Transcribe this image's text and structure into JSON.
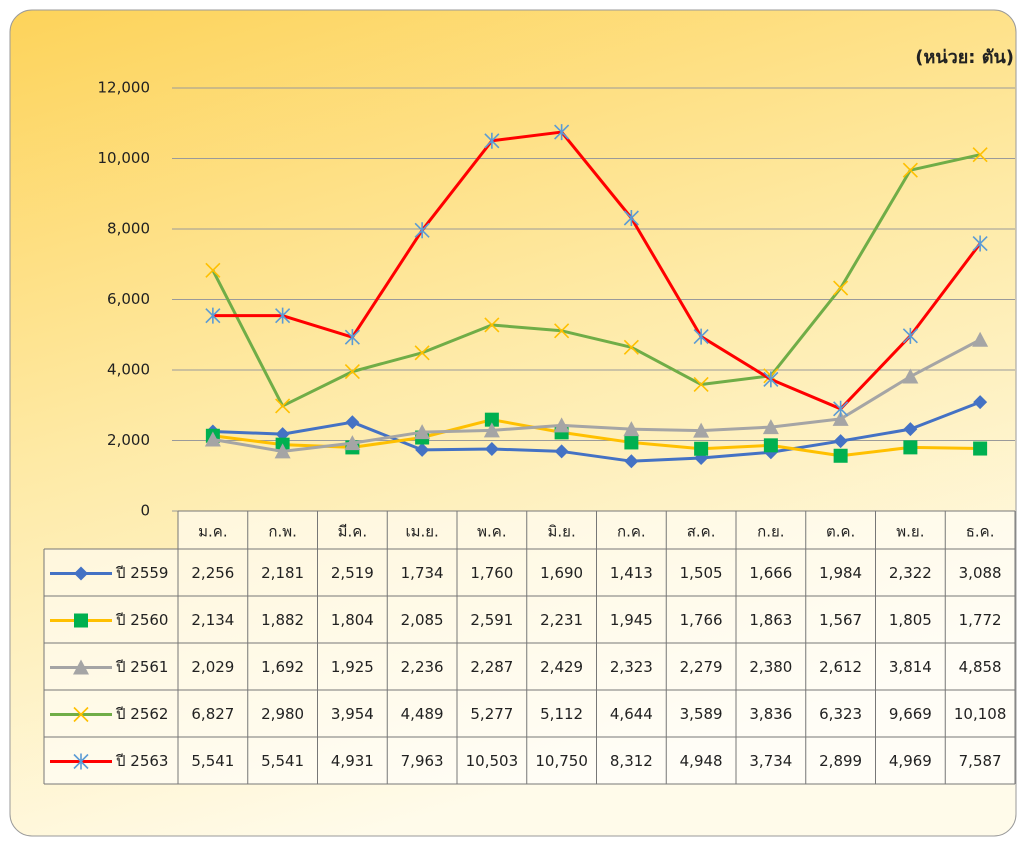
{
  "chart_data": {
    "type": "line",
    "annotations": [
      "(หน่วย: ตัน)"
    ],
    "categories": [
      "ม.ค.",
      "ก.พ.",
      "มี.ค.",
      "เม.ย.",
      "พ.ค.",
      "มิ.ย.",
      "ก.ค.",
      "ส.ค.",
      "ก.ย.",
      "ต.ค.",
      "พ.ย.",
      "ธ.ค."
    ],
    "ylim": [
      0,
      12000
    ],
    "yticks": [
      0,
      {
        "value": 2000,
        "label": "2,000"
      },
      {
        "value": 4000,
        "label": "4,000"
      },
      {
        "value": 6000,
        "label": "6,000"
      },
      {
        "value": 8000,
        "label": "8,000"
      },
      {
        "value": 10000,
        "label": "10,000"
      },
      {
        "value": 12000,
        "label": "12,000"
      }
    ],
    "grid": true,
    "series": [
      {
        "name": "ปี 2559",
        "color": "#4472c4",
        "marker": "diamond",
        "marker_color": "#4472c4",
        "values": [
          2256,
          2181,
          2519,
          1734,
          1760,
          1690,
          1413,
          1505,
          1666,
          1984,
          2322,
          3088
        ],
        "value_labels": [
          "2,256",
          "2,181",
          "2,519",
          "1,734",
          "1,760",
          "1,690",
          "1,413",
          "1,505",
          "1,666",
          "1,984",
          "2,322",
          "3,088"
        ]
      },
      {
        "name": "ปี 2560",
        "color": "#ffc000",
        "marker": "square",
        "marker_color": "#00b050",
        "values": [
          2134,
          1882,
          1804,
          2085,
          2591,
          2231,
          1945,
          1766,
          1863,
          1567,
          1805,
          1772
        ],
        "value_labels": [
          "2,134",
          "1,882",
          "1,804",
          "2,085",
          "2,591",
          "2,231",
          "1,945",
          "1,766",
          "1,863",
          "1,567",
          "1,805",
          "1,772"
        ]
      },
      {
        "name": "ปี 2561",
        "color": "#a5a5a5",
        "marker": "triangle",
        "marker_color": "#a5a5a5",
        "values": [
          2029,
          1692,
          1925,
          2236,
          2287,
          2429,
          2323,
          2279,
          2380,
          2612,
          3814,
          4858
        ],
        "value_labels": [
          "2,029",
          "1,692",
          "1,925",
          "2,236",
          "2,287",
          "2,429",
          "2,323",
          "2,279",
          "2,380",
          "2,612",
          "3,814",
          "4,858"
        ]
      },
      {
        "name": "ปี 2562",
        "color": "#70ad47",
        "marker": "x",
        "marker_color": "#ffc000",
        "values": [
          6827,
          2980,
          3954,
          4489,
          5277,
          5112,
          4644,
          3589,
          3836,
          6323,
          9669,
          10108
        ],
        "value_labels": [
          "6,827",
          "2,980",
          "3,954",
          "4,489",
          "5,277",
          "5,112",
          "4,644",
          "3,589",
          "3,836",
          "6,323",
          "9,669",
          "10,108"
        ]
      },
      {
        "name": "ปี 2563",
        "color": "#ff0000",
        "marker": "star",
        "marker_color": "#5b9bd5",
        "values": [
          5541,
          5541,
          4931,
          7963,
          10503,
          10750,
          8312,
          4948,
          3734,
          2899,
          4969,
          7587
        ],
        "value_labels": [
          "5,541",
          "5,541",
          "4,931",
          "7,963",
          "10,503",
          "10,750",
          "8,312",
          "4,948",
          "3,734",
          "2,899",
          "4,969",
          "7,587"
        ]
      }
    ]
  }
}
